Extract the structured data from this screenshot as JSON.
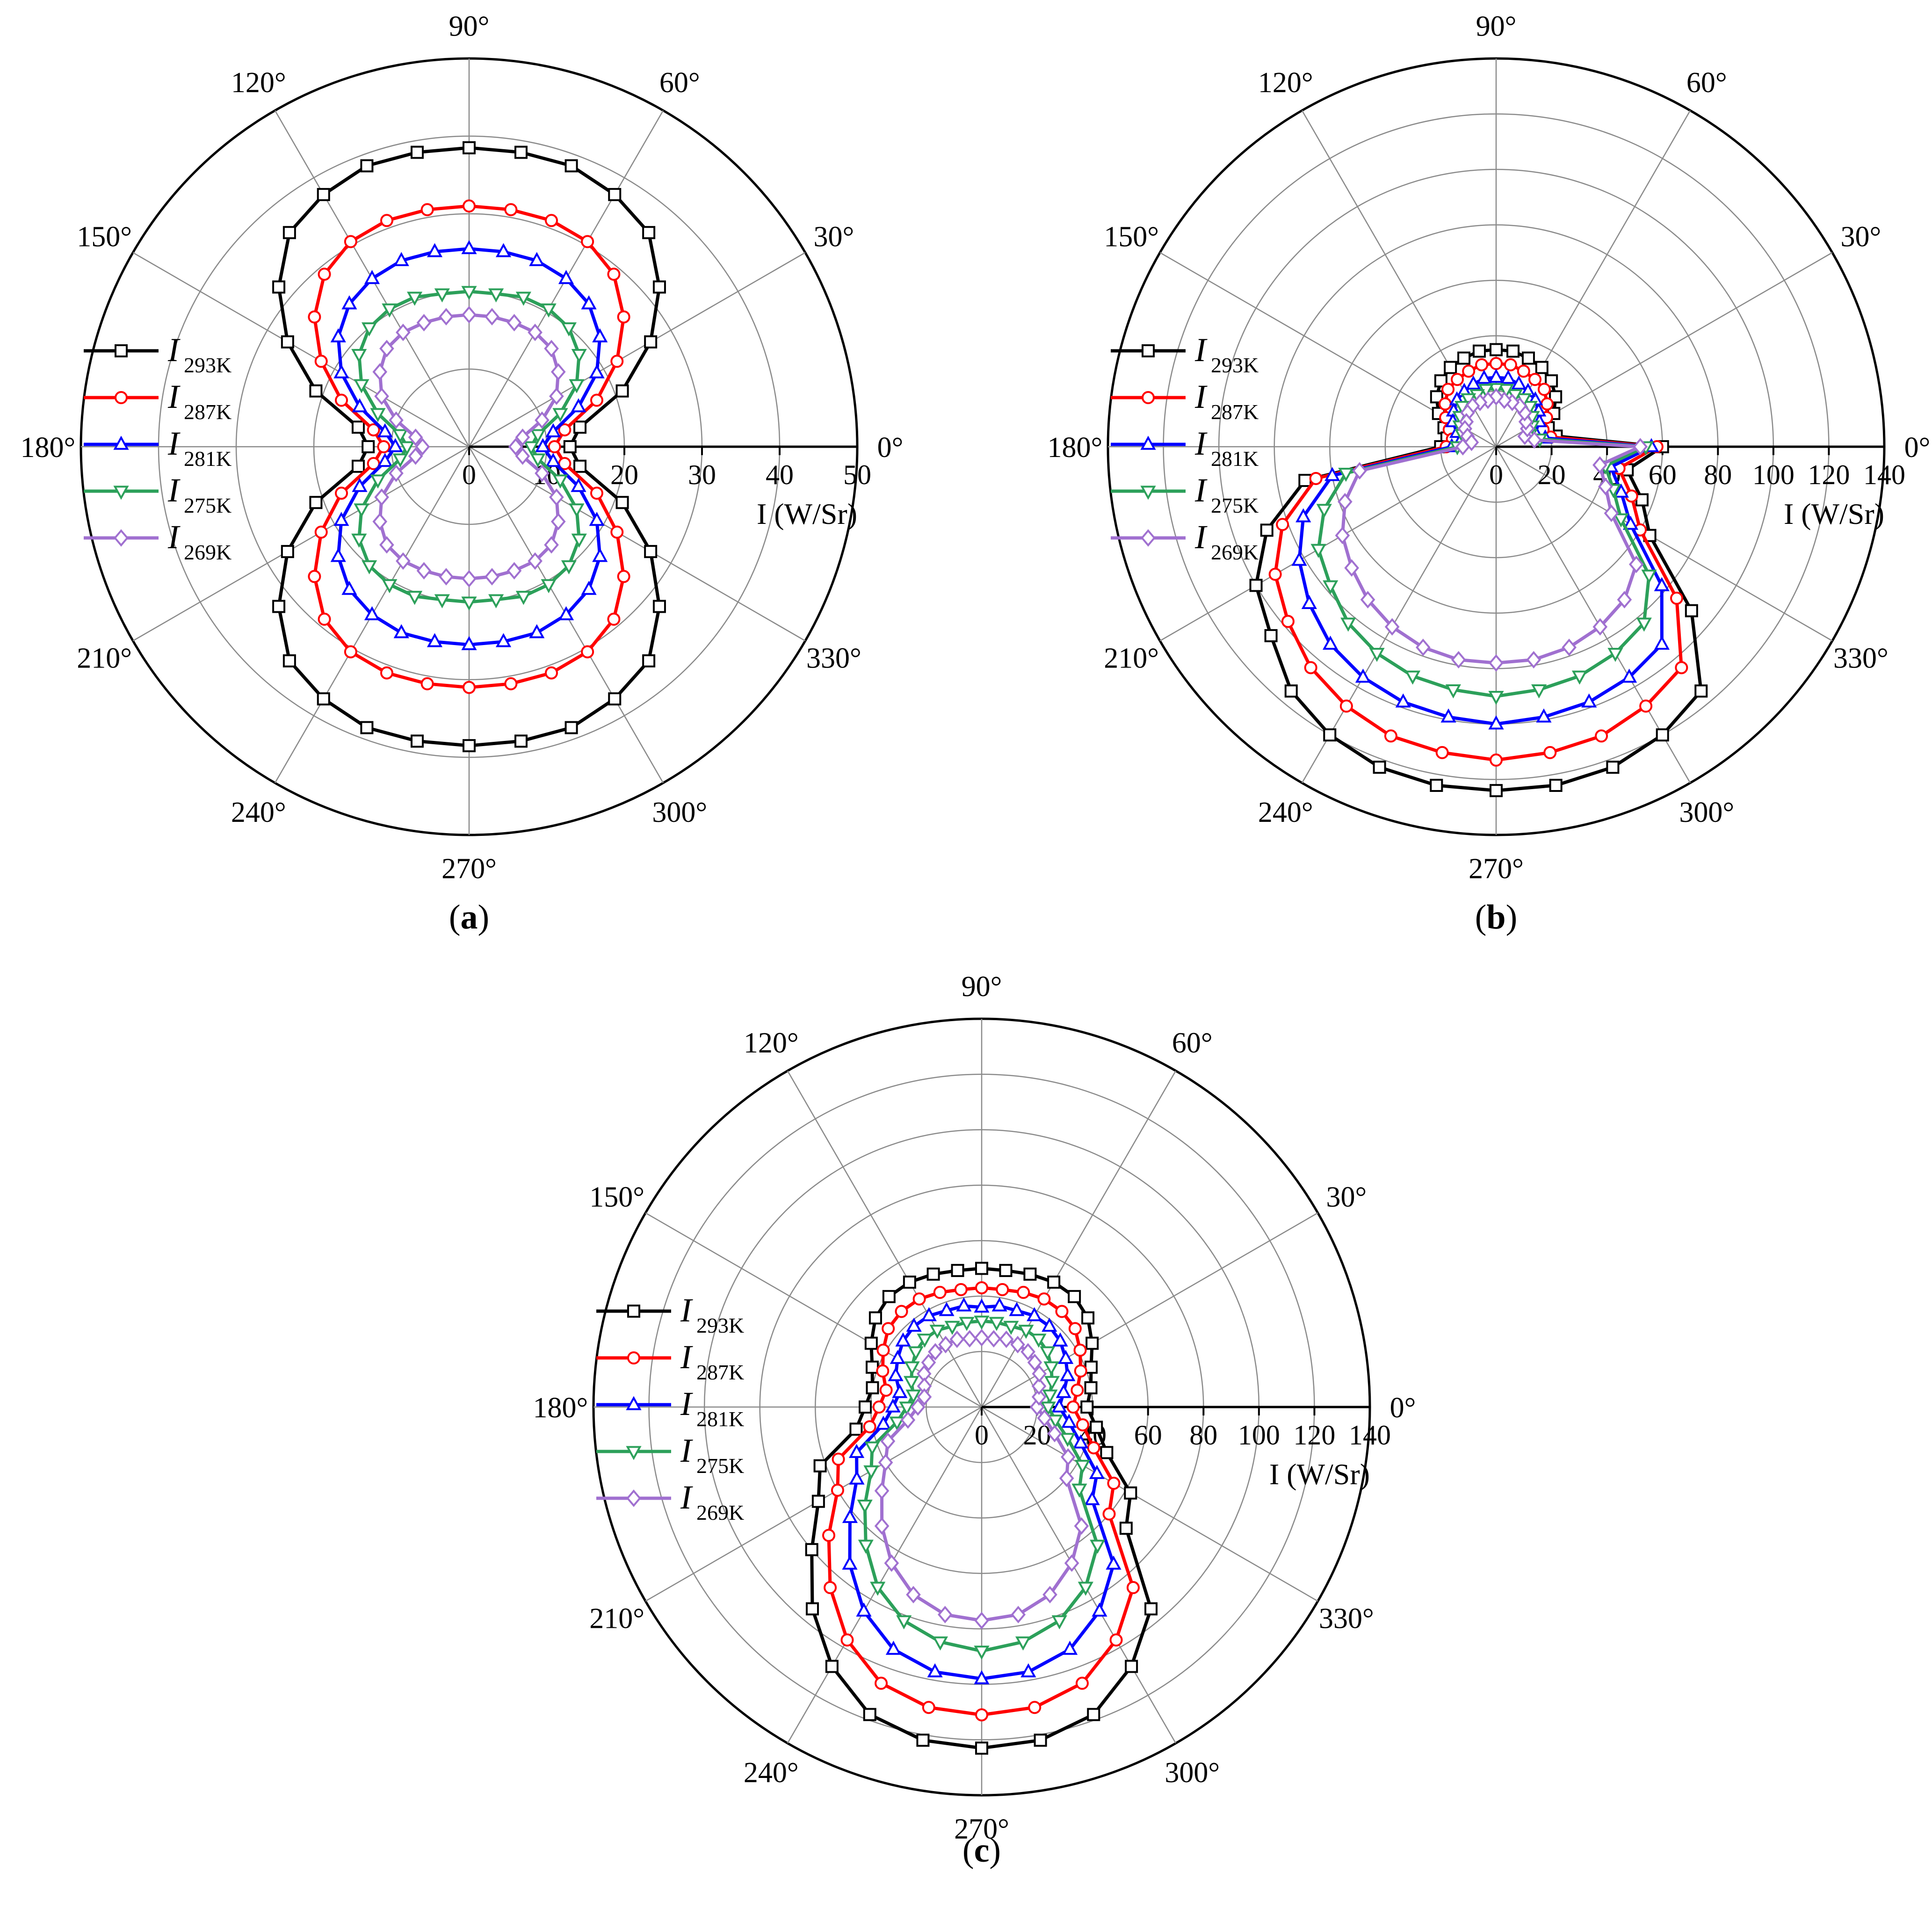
{
  "figure": {
    "captions": [
      "(a)",
      "(b)",
      "(c)"
    ],
    "caption_letters": [
      "a",
      "b",
      "c"
    ]
  },
  "chart_data": [
    {
      "type": "polar-line",
      "panel": "a",
      "caption": "(a)",
      "radial_axis_label": "I (W/Sr)",
      "radial_range": [
        0,
        50
      ],
      "radial_ticks": [
        0,
        10,
        20,
        30,
        40,
        50
      ],
      "angle_ticks": [
        "0°",
        "30°",
        "60°",
        "90°",
        "120°",
        "150°",
        "180°",
        "210°",
        "240°",
        "270°",
        "300°",
        "330°"
      ],
      "legend_position": "left",
      "grid": true,
      "angles_deg": [
        0,
        10,
        20,
        30,
        40,
        50,
        60,
        70,
        80,
        90,
        100,
        110,
        120,
        130,
        140,
        150,
        160,
        170,
        180,
        190,
        200,
        210,
        220,
        230,
        240,
        250,
        260,
        270,
        280,
        290,
        300,
        310,
        320,
        330,
        340,
        350
      ],
      "series": [
        {
          "name": "I 293K",
          "label_main": "I",
          "label_sub": "293K",
          "color": "#000000",
          "marker": "square",
          "values": [
            13,
            14.5,
            21,
            27,
            32,
            36,
            37.5,
            38.5,
            38.5,
            38.5,
            38.5,
            38.5,
            37.5,
            36,
            32,
            27,
            21,
            14.5,
            13,
            14.5,
            21,
            27,
            32,
            36,
            37.5,
            38.5,
            38.5,
            38.5,
            38.5,
            38.5,
            37.5,
            36,
            32,
            27,
            21,
            14.5
          ]
        },
        {
          "name": "I 287K",
          "label_main": "I",
          "label_sub": "287K",
          "color": "#ff0000",
          "marker": "circle",
          "values": [
            11,
            12.5,
            17.5,
            22,
            26,
            29,
            30.5,
            31,
            31,
            31,
            31,
            31,
            30.5,
            29,
            26,
            22,
            17.5,
            12.5,
            11,
            12.5,
            17.5,
            22,
            26,
            29,
            30.5,
            31,
            31,
            31,
            31,
            31,
            30.5,
            29,
            26,
            22,
            17.5,
            12.5
          ]
        },
        {
          "name": "I 281K",
          "label_main": "I",
          "label_sub": "281K",
          "color": "#0000ff",
          "marker": "triangle-up",
          "values": [
            9.5,
            11,
            15,
            19,
            22,
            24,
            25,
            25.5,
            25.5,
            25.5,
            25.5,
            25.5,
            25,
            24,
            22,
            19,
            15,
            11,
            9.5,
            11,
            15,
            19,
            22,
            24,
            25,
            25.5,
            25.5,
            25.5,
            25.5,
            25.5,
            25,
            24,
            22,
            19,
            15,
            11
          ]
        },
        {
          "name": "I 275K",
          "label_main": "I",
          "label_sub": "275K",
          "color": "#2ca05a",
          "marker": "triangle-down",
          "values": [
            8,
            9,
            12.5,
            16,
            18.5,
            20,
            20.5,
            20.5,
            20,
            20,
            20,
            20.5,
            20.5,
            20,
            18.5,
            16,
            12.5,
            9,
            8,
            9,
            12.5,
            16,
            18.5,
            20,
            20.5,
            20.5,
            20,
            20,
            20,
            20.5,
            20.5,
            20,
            18.5,
            16,
            12.5,
            9
          ]
        },
        {
          "name": "I 269K",
          "label_main": "I",
          "label_sub": "269K",
          "color": "#a070d0",
          "marker": "diamond",
          "values": [
            6,
            7,
            10,
            13,
            15,
            16.5,
            17,
            17,
            17,
            17,
            17,
            17,
            17,
            16.5,
            15,
            13,
            10,
            7,
            6,
            7,
            10,
            13,
            15,
            16.5,
            17,
            17,
            17,
            17,
            17,
            17,
            17,
            16.5,
            15,
            13,
            10,
            7
          ]
        }
      ]
    },
    {
      "type": "polar-line",
      "panel": "b",
      "caption": "(b)",
      "radial_axis_label": "I (W/Sr)",
      "radial_range": [
        0,
        140
      ],
      "radial_ticks": [
        0,
        20,
        40,
        60,
        80,
        100,
        120,
        140
      ],
      "angle_ticks": [
        "0°",
        "30°",
        "60°",
        "90°",
        "120°",
        "150°",
        "180°",
        "210°",
        "240°",
        "270°",
        "300°",
        "330°"
      ],
      "legend_position": "left",
      "grid": true,
      "angles_deg": [
        0,
        10,
        20,
        30,
        40,
        50,
        60,
        70,
        80,
        90,
        100,
        110,
        120,
        130,
        140,
        150,
        160,
        170,
        180,
        190,
        200,
        210,
        220,
        230,
        240,
        250,
        260,
        270,
        280,
        290,
        300,
        310,
        320,
        330,
        340,
        350
      ],
      "series": [
        {
          "name": "I 293K",
          "label_main": "I",
          "label_sub": "293K",
          "color": "#000000",
          "marker": "square",
          "values": [
            60,
            22,
            20,
            24,
            28,
            31,
            33,
            34,
            35,
            35,
            35,
            34,
            33,
            31,
            28,
            24,
            20,
            18,
            20,
            70,
            88,
            100,
            106,
            115,
            120,
            123,
            124,
            124,
            124,
            123,
            120,
            115,
            92,
            64,
            56,
            48
          ]
        },
        {
          "name": "I 287K",
          "label_main": "I",
          "label_sub": "287K",
          "color": "#ff0000",
          "marker": "circle",
          "values": [
            58,
            20,
            18,
            21,
            24,
            27,
            28,
            29,
            30,
            30,
            30,
            29,
            28,
            27,
            24,
            21,
            18,
            16,
            18,
            66,
            82,
            92,
            98,
            104,
            108,
            111,
            112,
            113,
            112,
            111,
            108,
            104,
            85,
            60,
            52,
            45
          ]
        },
        {
          "name": "I 281K",
          "label_main": "I",
          "label_sub": "281K",
          "color": "#0000ff",
          "marker": "triangle-up",
          "values": [
            56,
            18,
            15,
            18,
            20,
            22,
            23,
            24,
            25,
            25,
            25,
            24,
            23,
            22,
            20,
            18,
            15,
            13,
            16,
            60,
            74,
            82,
            88,
            93,
            96,
            98,
            99,
            100,
            99,
            98,
            96,
            93,
            78,
            56,
            48,
            42
          ]
        },
        {
          "name": "I 275K",
          "label_main": "I",
          "label_sub": "275K",
          "color": "#2ca05a",
          "marker": "triangle-down",
          "values": [
            54,
            16,
            13,
            15,
            17,
            19,
            20,
            20,
            21,
            21,
            21,
            20,
            20,
            19,
            17,
            15,
            13,
            11,
            14,
            55,
            66,
            74,
            78,
            83,
            86,
            88,
            89,
            90,
            89,
            88,
            86,
            83,
            72,
            52,
            45,
            40
          ]
        },
        {
          "name": "I 269K",
          "label_main": "I",
          "label_sub": "269K",
          "color": "#a070d0",
          "marker": "diamond",
          "values": [
            52,
            14,
            11,
            13,
            14,
            16,
            17,
            17,
            17,
            18,
            17,
            17,
            17,
            16,
            14,
            13,
            11,
            9,
            12,
            50,
            58,
            64,
            68,
            72,
            75,
            77,
            78,
            78,
            78,
            77,
            75,
            72,
            66,
            48,
            42,
            38
          ]
        }
      ]
    },
    {
      "type": "polar-line",
      "panel": "c",
      "caption": "(c)",
      "radial_axis_label": "I (W/Sr)",
      "radial_range": [
        0,
        140
      ],
      "radial_ticks": [
        0,
        20,
        40,
        60,
        80,
        100,
        120,
        140
      ],
      "angle_ticks": [
        "0°",
        "30°",
        "60°",
        "90°",
        "120°",
        "150°",
        "180°",
        "210°",
        "240°",
        "270°",
        "300°",
        "330°"
      ],
      "legend_position": "left",
      "grid": true,
      "angles_deg": [
        0,
        10,
        20,
        30,
        40,
        50,
        60,
        70,
        80,
        90,
        100,
        110,
        120,
        130,
        140,
        150,
        160,
        170,
        180,
        190,
        200,
        210,
        220,
        230,
        240,
        250,
        260,
        270,
        280,
        290,
        300,
        310,
        320,
        330,
        340,
        350
      ],
      "series": [
        {
          "name": "I 293K",
          "label_main": "I",
          "label_sub": "293K",
          "color": "#000000",
          "marker": "square",
          "values": [
            38,
            40,
            42,
            46,
            50,
            52,
            52,
            51,
            50,
            50,
            50,
            51,
            52,
            52,
            50,
            46,
            42,
            40,
            42,
            46,
            62,
            68,
            80,
            95,
            108,
            118,
            122,
            123,
            122,
            118,
            108,
            95,
            68,
            62,
            48,
            42
          ]
        },
        {
          "name": "I 287K",
          "label_main": "I",
          "label_sub": "287K",
          "color": "#ff0000",
          "marker": "circle",
          "values": [
            33,
            35,
            38,
            41,
            44,
            45,
            45,
            44,
            43,
            43,
            43,
            44,
            45,
            45,
            44,
            41,
            38,
            35,
            37,
            41,
            55,
            60,
            72,
            85,
            97,
            106,
            110,
            111,
            110,
            106,
            97,
            85,
            60,
            55,
            43,
            37
          ]
        },
        {
          "name": "I 281K",
          "label_main": "I",
          "label_sub": "281K",
          "color": "#0000ff",
          "marker": "triangle-up",
          "values": [
            28,
            30,
            33,
            35,
            37,
            38,
            38,
            37,
            37,
            36,
            37,
            37,
            38,
            38,
            37,
            35,
            33,
            30,
            32,
            36,
            48,
            52,
            62,
            74,
            85,
            93,
            97,
            98,
            97,
            93,
            85,
            74,
            52,
            48,
            38,
            32
          ]
        },
        {
          "name": "I 275K",
          "label_main": "I",
          "label_sub": "275K",
          "color": "#2ca05a",
          "marker": "triangle-down",
          "values": [
            24,
            25,
            27,
            29,
            31,
            32,
            32,
            31,
            31,
            31,
            31,
            31,
            32,
            32,
            31,
            29,
            27,
            25,
            27,
            31,
            42,
            46,
            55,
            65,
            75,
            82,
            86,
            88,
            86,
            82,
            75,
            65,
            46,
            42,
            33,
            27
          ]
        },
        {
          "name": "I 269K",
          "label_main": "I",
          "label_sub": "269K",
          "color": "#a070d0",
          "marker": "diamond",
          "values": [
            20,
            21,
            22,
            24,
            25,
            26,
            26,
            26,
            25,
            25,
            25,
            26,
            26,
            26,
            25,
            24,
            22,
            21,
            23,
            27,
            36,
            40,
            47,
            56,
            65,
            72,
            76,
            77,
            76,
            72,
            65,
            56,
            40,
            36,
            28,
            23
          ]
        }
      ]
    }
  ]
}
